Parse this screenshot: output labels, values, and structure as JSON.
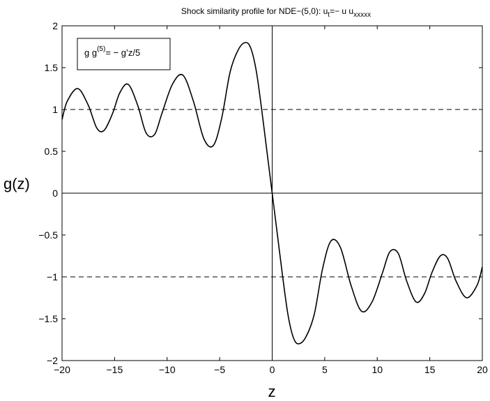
{
  "chart_data": {
    "type": "line",
    "title": {
      "main": "Shock similarity profile for NDE−(5,0): u",
      "sub_t": "t",
      "middle": "=− u u",
      "sub_x": "xxxxx"
    },
    "xlabel": "z",
    "ylabel": "g(z)",
    "xlim": [
      -20,
      20
    ],
    "ylim": [
      -2,
      2
    ],
    "x_ticks": [
      -20,
      -15,
      -10,
      -5,
      0,
      5,
      10,
      15,
      20
    ],
    "x_tick_labels": [
      "−20",
      "−15",
      "−10",
      "−5",
      "0",
      "5",
      "10",
      "15",
      "20"
    ],
    "y_ticks": [
      2,
      1.5,
      1,
      0.5,
      0,
      -0.5,
      -1,
      -1.5,
      -2
    ],
    "y_tick_labels": [
      "2",
      "1.5",
      "1",
      "0.5",
      "0",
      "−0.5",
      "−1",
      "−1.5",
      "−2"
    ],
    "reference_lines": {
      "dashed_y": [
        1,
        -1
      ],
      "solid_y": [
        0
      ],
      "solid_x": [
        0
      ]
    },
    "legend": {
      "placement": "top-left",
      "prefix": "g g",
      "superscript": "(5)",
      "suffix": "= − g’z/5"
    },
    "series": [
      {
        "color": "#000000",
        "x": [
          -20,
          -19.5,
          -18.5,
          -17.5,
          -16.7,
          -16.0,
          -15.2,
          -14.5,
          -13.7,
          -12.8,
          -12.0,
          -11.2,
          -10.5,
          -9.5,
          -8.5,
          -7.5,
          -6.5,
          -5.6,
          -4.8,
          -4.0,
          -3.2,
          -2.5,
          -2.0,
          -1.5,
          -1.0,
          -0.5,
          0,
          0.5,
          1.0,
          1.5,
          2.0,
          2.5,
          3.2,
          4.0,
          4.8,
          5.6,
          6.5,
          7.5,
          8.5,
          9.5,
          10.5,
          11.2,
          12.0,
          12.8,
          13.7,
          14.5,
          15.2,
          16.0,
          16.7,
          17.5,
          18.5,
          19.5,
          20
        ],
        "y": [
          0.88,
          1.1,
          1.25,
          1.05,
          0.78,
          0.75,
          0.95,
          1.2,
          1.3,
          1.05,
          0.72,
          0.7,
          0.95,
          1.3,
          1.41,
          1.1,
          0.65,
          0.57,
          0.9,
          1.45,
          1.72,
          1.8,
          1.72,
          1.45,
          1.0,
          0.5,
          0,
          -0.5,
          -1.0,
          -1.45,
          -1.72,
          -1.8,
          -1.72,
          -1.45,
          -0.9,
          -0.57,
          -0.65,
          -1.1,
          -1.41,
          -1.3,
          -0.95,
          -0.7,
          -0.72,
          -1.05,
          -1.3,
          -1.2,
          -0.95,
          -0.75,
          -0.78,
          -1.05,
          -1.25,
          -1.1,
          -0.88
        ]
      }
    ]
  }
}
